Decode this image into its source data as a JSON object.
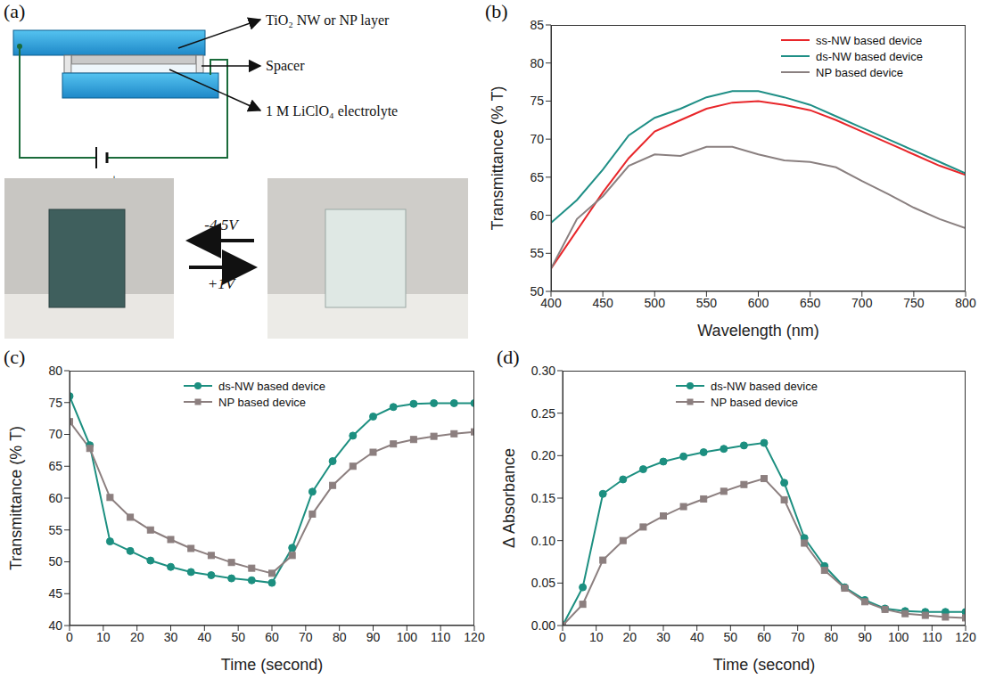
{
  "diagram": {
    "label": "(a)",
    "callouts": [
      "TiO₂ NW or NP layer",
      "Spacer",
      "1 M LiClO₄ electrolyte"
    ],
    "battery": [
      "-",
      "+"
    ],
    "switch": {
      "to_colored": "-4.5V",
      "to_bleached": "+1V"
    }
  },
  "chart_data": [
    {
      "label": "(b)",
      "type": "line",
      "xlabel": "Wavelength (nm)",
      "ylabel": "Transmittance (% T)",
      "x": [
        400,
        425,
        450,
        475,
        500,
        525,
        550,
        575,
        600,
        625,
        650,
        675,
        700,
        725,
        750,
        775,
        800
      ],
      "series": [
        {
          "name": "ss-NW based device",
          "color": "#e8262a",
          "marker": "none",
          "values": [
            53,
            58,
            63,
            67.5,
            71,
            72.5,
            74,
            74.8,
            75,
            74.5,
            73.8,
            72.5,
            71,
            69.5,
            68,
            66.5,
            65.3
          ]
        },
        {
          "name": "ds-NW based device",
          "color": "#1f8f86",
          "marker": "none",
          "values": [
            59,
            62,
            66,
            70.5,
            72.8,
            74,
            75.5,
            76.3,
            76.3,
            75.5,
            74.5,
            73,
            71.5,
            70,
            68.5,
            67,
            65.5
          ]
        },
        {
          "name": "NP based device",
          "color": "#8a8080",
          "marker": "none",
          "values": [
            53,
            59.5,
            62.5,
            66.5,
            68,
            67.8,
            69,
            69,
            68,
            67.2,
            67,
            66.3,
            64.5,
            62.8,
            61,
            59.5,
            58.3
          ]
        }
      ],
      "xlim": [
        400,
        800
      ],
      "xticks": [
        400,
        450,
        500,
        550,
        600,
        650,
        700,
        750,
        800
      ],
      "ylim": [
        50,
        85
      ],
      "yticks": [
        50,
        55,
        60,
        65,
        70,
        75,
        80,
        85
      ],
      "grid": false,
      "legend": "upper right"
    },
    {
      "label": "(c)",
      "type": "line",
      "xlabel": "Time (second)",
      "ylabel": "Transmittance (% T)",
      "x": [
        0,
        6,
        12,
        18,
        24,
        30,
        36,
        42,
        48,
        54,
        60,
        66,
        72,
        78,
        84,
        90,
        96,
        102,
        108,
        114,
        120
      ],
      "series": [
        {
          "name": "ds-NW based device",
          "color": "#1c8f80",
          "marker": "circle",
          "values": [
            76,
            68.3,
            53.2,
            51.7,
            50.2,
            49.2,
            48.4,
            47.9,
            47.4,
            47.1,
            46.7,
            52.2,
            61,
            65.8,
            69.8,
            72.8,
            74.3,
            74.8,
            74.9,
            74.9,
            74.9
          ]
        },
        {
          "name": "NP based device",
          "color": "#8c7f7f",
          "marker": "square",
          "values": [
            72,
            67.8,
            60.1,
            57,
            55,
            53.5,
            52.1,
            51,
            49.9,
            49,
            48.2,
            51,
            57.5,
            62,
            65,
            67.2,
            68.5,
            69.2,
            69.7,
            70.1,
            70.4
          ]
        }
      ],
      "xlim": [
        0,
        120
      ],
      "xticks": [
        0,
        10,
        20,
        30,
        40,
        50,
        60,
        70,
        80,
        90,
        100,
        110,
        120
      ],
      "ylim": [
        40,
        80
      ],
      "yticks": [
        40,
        45,
        50,
        55,
        60,
        65,
        70,
        75,
        80
      ],
      "grid": false,
      "legend": "upper center"
    },
    {
      "label": "(d)",
      "type": "line",
      "xlabel": "Time (second)",
      "ylabel": "Δ Absorbance",
      "x": [
        0,
        6,
        12,
        18,
        24,
        30,
        36,
        42,
        48,
        54,
        60,
        66,
        72,
        78,
        84,
        90,
        96,
        102,
        108,
        114,
        120
      ],
      "series": [
        {
          "name": "ds-NW based device",
          "color": "#1c8f80",
          "marker": "circle",
          "values": [
            0,
            0.045,
            0.155,
            0.172,
            0.184,
            0.193,
            0.199,
            0.204,
            0.208,
            0.212,
            0.215,
            0.168,
            0.103,
            0.07,
            0.045,
            0.03,
            0.02,
            0.017,
            0.016,
            0.016,
            0.016
          ]
        },
        {
          "name": "NP based device",
          "color": "#8c7f7f",
          "marker": "square",
          "values": [
            0,
            0.025,
            0.077,
            0.1,
            0.116,
            0.129,
            0.14,
            0.149,
            0.158,
            0.166,
            0.173,
            0.148,
            0.097,
            0.065,
            0.044,
            0.028,
            0.019,
            0.014,
            0.012,
            0.01,
            0.009
          ]
        }
      ],
      "xlim": [
        0,
        120
      ],
      "xticks": [
        0,
        10,
        20,
        30,
        40,
        50,
        60,
        70,
        80,
        90,
        100,
        110,
        120
      ],
      "ylim": [
        0,
        0.3
      ],
      "yticks": [
        {
          "value": 0,
          "label": "0.00"
        },
        {
          "value": 0.05,
          "label": "0.05"
        },
        {
          "value": 0.1,
          "label": "0.10"
        },
        {
          "value": 0.15,
          "label": "0.15"
        },
        {
          "value": 0.2,
          "label": "0.20"
        },
        {
          "value": 0.25,
          "label": "0.25"
        },
        {
          "value": 0.3,
          "label": "0.30"
        }
      ],
      "grid": false,
      "legend": "upper center"
    }
  ]
}
